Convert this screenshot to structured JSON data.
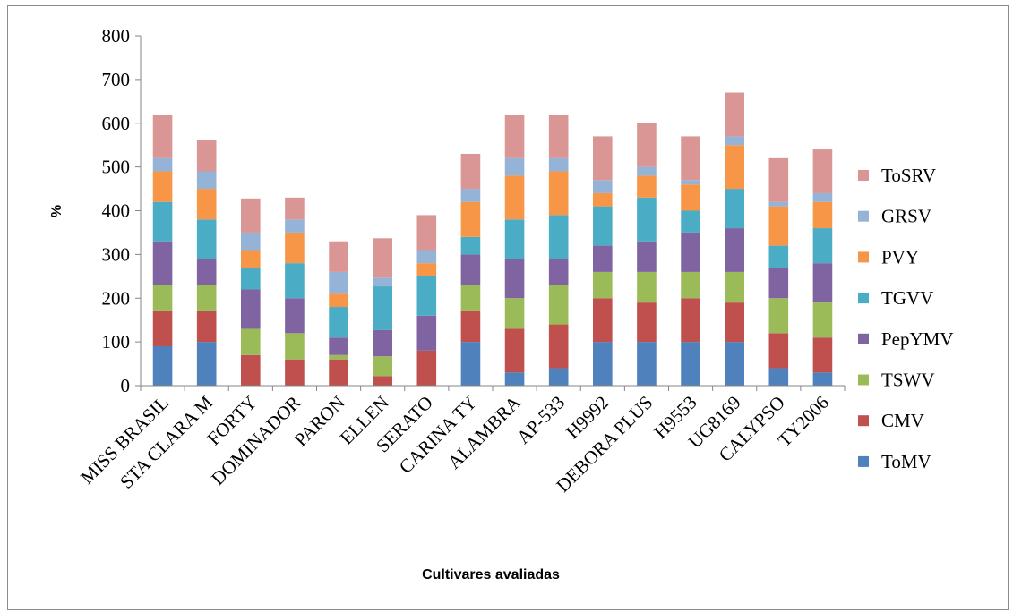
{
  "chart_data": {
    "type": "bar",
    "stacked": true,
    "title": "",
    "xlabel": "Cultivares avaliadas",
    "ylabel": "%",
    "ylim": [
      0,
      800
    ],
    "yticks": [
      0,
      100,
      200,
      300,
      400,
      500,
      600,
      700,
      800
    ],
    "grid": false,
    "legend_position": "right",
    "categories": [
      "MISS BRASIL",
      "STA CLARA M",
      "FORTY",
      "DOMINADOR",
      "PARON",
      "ELLEN",
      "SERATO",
      "CARINA TY",
      "ALAMBRA",
      "AP-533",
      "H9992",
      "DEBORA PLUS",
      "H9553",
      "UG8169",
      "CALYPSO",
      "TY2006"
    ],
    "series": [
      {
        "name": "ToMV",
        "color": "#4f81bd",
        "values": [
          90,
          100,
          0,
          0,
          0,
          0,
          0,
          100,
          30,
          40,
          100,
          100,
          100,
          100,
          40,
          30
        ]
      },
      {
        "name": "CMV",
        "color": "#c0504d",
        "values": [
          80,
          70,
          70,
          60,
          60,
          22,
          80,
          70,
          100,
          100,
          100,
          90,
          100,
          90,
          80,
          80
        ]
      },
      {
        "name": "TSWV",
        "color": "#9bbb59",
        "values": [
          60,
          60,
          60,
          60,
          10,
          45,
          0,
          60,
          70,
          90,
          60,
          70,
          60,
          70,
          80,
          80
        ]
      },
      {
        "name": "PepYMV",
        "color": "#8064a2",
        "values": [
          100,
          60,
          90,
          80,
          40,
          60,
          80,
          70,
          90,
          60,
          60,
          70,
          90,
          100,
          70,
          90
        ]
      },
      {
        "name": "TGVV",
        "color": "#4bacc6",
        "values": [
          90,
          90,
          50,
          80,
          70,
          100,
          90,
          40,
          90,
          100,
          90,
          100,
          50,
          90,
          50,
          80
        ]
      },
      {
        "name": "PVY",
        "color": "#f79646",
        "values": [
          70,
          70,
          40,
          70,
          30,
          0,
          30,
          80,
          100,
          100,
          30,
          50,
          60,
          100,
          90,
          60
        ]
      },
      {
        "name": "GRSV",
        "color": "#95b3d7",
        "values": [
          30,
          40,
          40,
          30,
          50,
          20,
          30,
          30,
          40,
          30,
          30,
          20,
          10,
          20,
          10,
          20
        ]
      },
      {
        "name": "ToSRV",
        "color": "#d99694",
        "values": [
          100,
          72,
          78,
          50,
          70,
          90,
          80,
          80,
          100,
          100,
          100,
          100,
          100,
          100,
          100,
          100
        ]
      }
    ]
  }
}
